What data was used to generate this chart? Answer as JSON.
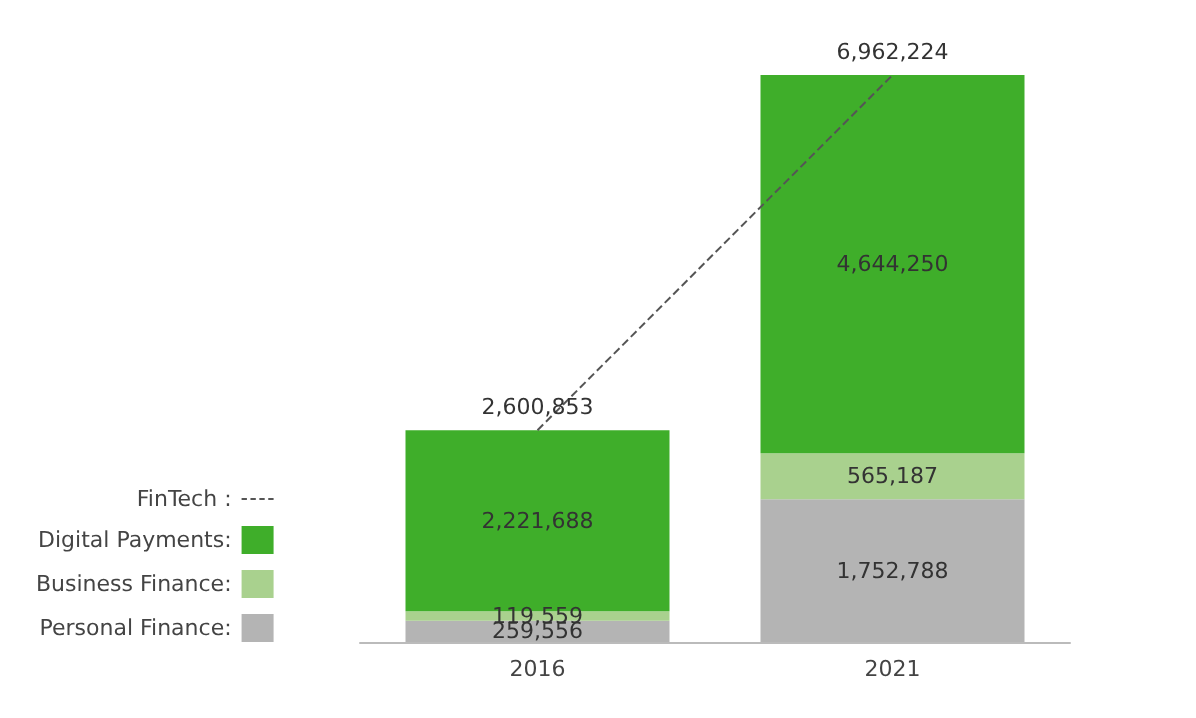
{
  "chart_data": {
    "type": "bar",
    "stacked": true,
    "categories": [
      "2016",
      "2021"
    ],
    "series": [
      {
        "name": "Personal Finance:",
        "color": "#b4b4b4",
        "values": [
          259556,
          1752788
        ],
        "value_labels": [
          "259,556",
          "1,752,788"
        ]
      },
      {
        "name": "Business Finance:",
        "color": "#a9d18e",
        "values": [
          119559,
          565187
        ],
        "value_labels": [
          "119,559",
          "565,187"
        ]
      },
      {
        "name": "Digital Payments:",
        "color": "#3fae2a",
        "values": [
          2221688,
          4644250
        ],
        "value_labels": [
          "2,221,688",
          "4,644,250"
        ]
      },
      {
        "name": "FinTech :",
        "type": "line",
        "color": "#555555",
        "line_style": "dashed",
        "marker": "none",
        "values": [
          2600853,
          6962224
        ],
        "value_labels": [
          "2,600,853",
          "6,962,224"
        ]
      }
    ],
    "legend": "bottom left",
    "tick_labels": "x"
  }
}
